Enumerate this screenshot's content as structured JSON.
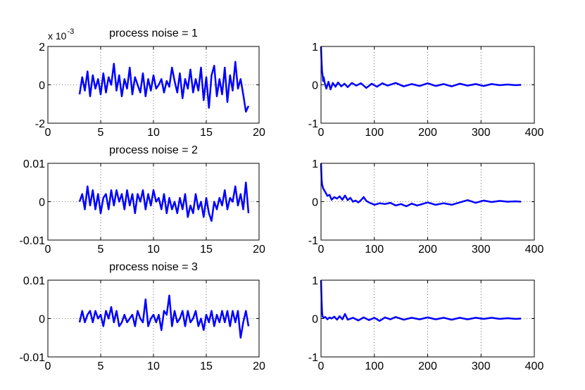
{
  "chart_data": [
    {
      "type": "line",
      "title": "process noise = 1",
      "y_exponent": {
        "base": "x 10",
        "power": "-3"
      },
      "xlim": [
        0,
        20
      ],
      "ylim": [
        -2,
        2
      ],
      "x_ticks": [
        "0",
        "5",
        "10",
        "15",
        "20"
      ],
      "y_ticks": [
        {
          "v": -2,
          "t": "-2"
        },
        {
          "v": 0,
          "t": "0"
        },
        {
          "v": 2,
          "t": "2"
        }
      ],
      "grid": true,
      "series": [
        {
          "color": "#0000ff",
          "x_start": 3.0,
          "x_step": 0.25,
          "y": [
            -0.5,
            0.4,
            -0.3,
            0.7,
            -0.6,
            0.5,
            -0.2,
            0.3,
            -0.5,
            0.6,
            -0.4,
            0.4,
            0.0,
            1.1,
            -0.3,
            0.5,
            -0.6,
            0.3,
            -0.2,
            0.9,
            -0.5,
            0.4,
            0.0,
            -0.4,
            0.6,
            -0.6,
            0.3,
            -0.3,
            0.5,
            -0.2,
            0.0,
            0.3,
            -0.4,
            0.2,
            -0.1,
            0.9,
            0.2,
            -0.4,
            0.6,
            -0.7,
            0.3,
            -0.2,
            0.8,
            -0.4,
            0.3,
            -0.3,
            0.9,
            -0.8,
            0.4,
            -1.2,
            0.5,
            1.0,
            -0.6,
            0.3,
            -0.5,
            0.9,
            -0.9,
            0.5,
            -0.3,
            1.2,
            -0.2,
            0.3,
            -0.5,
            -1.4,
            -1.1
          ]
        }
      ]
    },
    {
      "type": "line",
      "xlim": [
        0,
        400
      ],
      "ylim": [
        -1,
        1
      ],
      "x_ticks": [
        "0",
        "100",
        "200",
        "300",
        "400"
      ],
      "y_ticks": [
        {
          "v": -1,
          "t": "-1"
        },
        {
          "v": 0,
          "t": "0"
        },
        {
          "v": 1,
          "t": "1"
        }
      ],
      "grid": true,
      "series": [
        {
          "color": "#0000ff",
          "x": [
            0,
            1,
            2,
            3,
            4,
            5,
            7,
            10,
            14,
            18,
            22,
            27,
            32,
            38,
            44,
            50,
            58,
            66,
            75,
            85,
            95,
            105,
            115,
            125,
            140,
            155,
            170,
            185,
            200,
            215,
            230,
            245,
            260,
            275,
            290,
            305,
            320,
            335,
            350,
            365,
            375
          ],
          "y": [
            1.0,
            0.6,
            0.35,
            0.25,
            0.1,
            0.2,
            0.05,
            -0.1,
            0.08,
            -0.12,
            0.05,
            -0.05,
            0.06,
            -0.04,
            0.03,
            -0.06,
            0.05,
            -0.02,
            0.04,
            -0.08,
            0.03,
            -0.05,
            0.04,
            -0.02,
            0.05,
            -0.04,
            0.02,
            -0.03,
            0.04,
            -0.03,
            0.02,
            -0.04,
            0.03,
            -0.02,
            0.02,
            -0.03,
            0.02,
            -0.01,
            0.01,
            -0.01,
            0.0
          ]
        }
      ]
    },
    {
      "type": "line",
      "title": "process noise = 2",
      "xlim": [
        0,
        20
      ],
      "ylim": [
        -0.01,
        0.01
      ],
      "x_ticks": [
        "0",
        "5",
        "10",
        "15",
        "20"
      ],
      "y_ticks": [
        {
          "v": -0.01,
          "t": "-0.01"
        },
        {
          "v": 0,
          "t": "0"
        },
        {
          "v": 0.01,
          "t": "0.01"
        }
      ],
      "grid": true,
      "series": [
        {
          "color": "#0000ff",
          "x_start": 3.0,
          "x_step": 0.25,
          "y": [
            0.0,
            0.002,
            -0.002,
            0.004,
            -0.001,
            0.003,
            -0.002,
            0.002,
            -0.003,
            0.001,
            0.002,
            -0.002,
            0.003,
            -0.001,
            0.003,
            0.0,
            0.002,
            -0.002,
            0.003,
            -0.001,
            0.002,
            -0.003,
            0.002,
            0.0,
            0.003,
            -0.002,
            0.002,
            -0.001,
            0.003,
            0.0,
            0.001,
            -0.002,
            0.002,
            -0.003,
            0.001,
            -0.002,
            0.0,
            -0.003,
            0.001,
            -0.002,
            0.002,
            -0.004,
            -0.001,
            -0.003,
            0.002,
            -0.002,
            0.0,
            -0.004,
            0.001,
            -0.003,
            -0.005,
            0.0,
            -0.002,
            0.001,
            -0.001,
            0.003,
            -0.002,
            0.001,
            0.0,
            0.004,
            -0.001,
            0.002,
            -0.002,
            0.005,
            -0.003
          ]
        }
      ]
    },
    {
      "type": "line",
      "xlim": [
        0,
        400
      ],
      "ylim": [
        -1,
        1
      ],
      "x_ticks": [
        "0",
        "100",
        "200",
        "300",
        "400"
      ],
      "y_ticks": [
        {
          "v": -1,
          "t": "-1"
        },
        {
          "v": 0,
          "t": "0"
        },
        {
          "v": 1,
          "t": "1"
        }
      ],
      "grid": true,
      "series": [
        {
          "color": "#0000ff",
          "x": [
            0,
            1,
            2,
            4,
            6,
            8,
            12,
            16,
            20,
            25,
            30,
            35,
            40,
            45,
            50,
            55,
            60,
            65,
            70,
            75,
            80,
            85,
            90,
            100,
            110,
            120,
            130,
            140,
            150,
            160,
            170,
            180,
            190,
            200,
            215,
            230,
            245,
            260,
            275,
            290,
            305,
            320,
            335,
            350,
            365,
            375
          ],
          "y": [
            1.0,
            0.6,
            0.45,
            0.35,
            0.3,
            0.25,
            0.15,
            0.18,
            0.05,
            0.12,
            0.08,
            0.14,
            0.05,
            0.16,
            0.04,
            0.1,
            0.0,
            0.03,
            -0.02,
            0.04,
            0.12,
            0.02,
            -0.02,
            -0.08,
            -0.04,
            -0.06,
            -0.03,
            -0.1,
            -0.06,
            -0.12,
            -0.05,
            -0.1,
            -0.06,
            -0.02,
            -0.08,
            -0.04,
            -0.08,
            -0.02,
            0.04,
            -0.03,
            0.03,
            -0.01,
            0.02,
            0.0,
            0.01,
            0.0
          ]
        }
      ]
    },
    {
      "type": "line",
      "title": "process noise = 3",
      "xlim": [
        0,
        20
      ],
      "ylim": [
        -0.01,
        0.01
      ],
      "x_ticks": [
        "0",
        "5",
        "10",
        "15",
        "20"
      ],
      "y_ticks": [
        {
          "v": -0.01,
          "t": "-0.01"
        },
        {
          "v": 0,
          "t": "0"
        },
        {
          "v": 0.01,
          "t": "0.01"
        }
      ],
      "grid": true,
      "series": [
        {
          "color": "#0000ff",
          "x_start": 3.0,
          "x_step": 0.25,
          "y": [
            -0.001,
            0.002,
            -0.001,
            0.001,
            0.002,
            -0.001,
            0.002,
            0.0,
            0.001,
            -0.002,
            0.002,
            0.0,
            0.003,
            -0.001,
            0.002,
            -0.002,
            -0.001,
            0.001,
            -0.001,
            0.0,
            0.001,
            -0.002,
            0.002,
            0.0,
            -0.001,
            0.005,
            -0.002,
            0.0,
            0.001,
            -0.001,
            0.001,
            -0.003,
            0.002,
            0.001,
            0.006,
            -0.002,
            0.002,
            -0.001,
            0.0,
            0.002,
            -0.002,
            0.002,
            -0.001,
            0.0,
            0.002,
            -0.002,
            0.0,
            -0.003,
            0.001,
            -0.001,
            0.002,
            -0.002,
            0.001,
            -0.001,
            0.002,
            -0.001,
            0.002,
            -0.002,
            0.002,
            -0.001,
            0.002,
            -0.005,
            -0.001,
            0.002,
            -0.002
          ]
        }
      ]
    },
    {
      "type": "line",
      "xlim": [
        0,
        400
      ],
      "ylim": [
        -1,
        1
      ],
      "x_ticks": [
        "0",
        "100",
        "200",
        "300",
        "400"
      ],
      "y_ticks": [
        {
          "v": -1,
          "t": "-1"
        },
        {
          "v": 0,
          "t": "0"
        },
        {
          "v": 1,
          "t": "1"
        }
      ],
      "grid": true,
      "series": [
        {
          "color": "#0000ff",
          "x": [
            0,
            1,
            2,
            3,
            5,
            8,
            12,
            16,
            20,
            25,
            30,
            35,
            40,
            45,
            50,
            60,
            70,
            80,
            90,
            100,
            110,
            120,
            130,
            140,
            155,
            170,
            185,
            200,
            215,
            230,
            245,
            260,
            275,
            290,
            305,
            320,
            335,
            350,
            365,
            375
          ],
          "y": [
            1.0,
            0.5,
            0.15,
            0.05,
            0.02,
            0.04,
            -0.02,
            0.03,
            0.0,
            0.05,
            -0.03,
            0.06,
            -0.02,
            0.12,
            -0.03,
            0.02,
            -0.05,
            0.03,
            -0.04,
            0.02,
            -0.06,
            0.03,
            -0.02,
            0.04,
            -0.03,
            0.02,
            -0.02,
            0.03,
            -0.02,
            0.02,
            -0.03,
            0.02,
            -0.02,
            0.02,
            -0.01,
            0.02,
            -0.01,
            0.01,
            -0.01,
            0.0
          ]
        }
      ]
    }
  ]
}
